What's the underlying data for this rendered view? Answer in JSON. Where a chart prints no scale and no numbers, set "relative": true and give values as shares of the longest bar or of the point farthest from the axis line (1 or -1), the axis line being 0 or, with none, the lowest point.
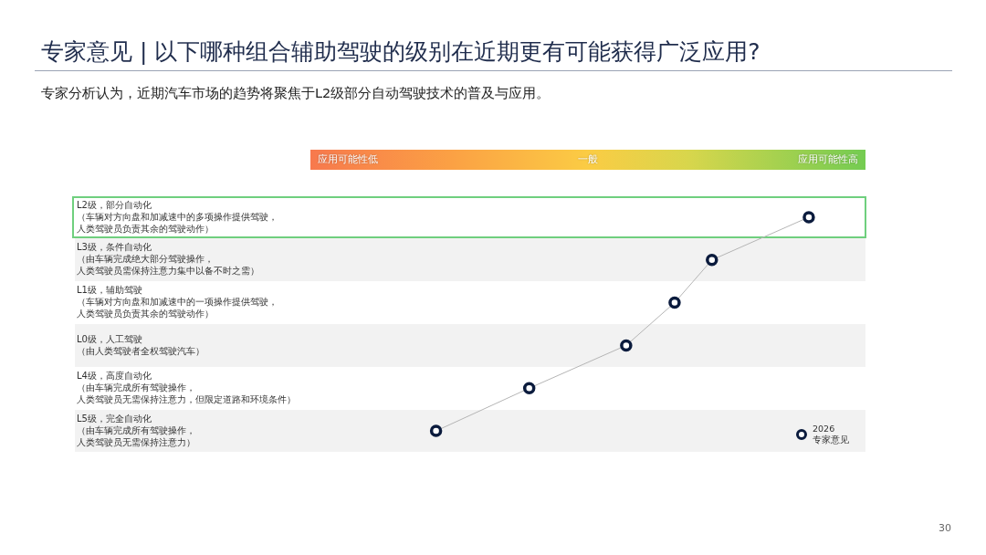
{
  "chart_data": {
    "type": "line",
    "orientation": "horizontal",
    "relative": true,
    "title": "专家意见 | 以下哪种组合辅助驾驶的级别在近期更有可能获得广泛应用?",
    "subtitle": "专家分析认为，近期汽车市场的趋势将聚焦于L2级部分自动驾驶技术的普及与应用。",
    "categories": [
      "L2级，部分自动化（车辆对方向盘和加减速中的多项操作提供驾驶，人类驾驶员负责其余的驾驶动作）",
      "L3级，条件自动化（由车辆完成绝大部分驾驶操作，人类驾驶员需保持注意力集中以备不时之需）",
      "L1级，辅助驾驶（车辆对方向盘和加减速中的一项操作提供驾驶，人类驾驶员负责其余的驾驶动作）",
      "L0级，人工驾驶（由人类驾驶者全权驾驶汽车）",
      "L4级，高度自动化（由车辆完成所有驾驶操作，人类驾驶员无需保持注意力，但限定道路和环境条件）",
      "L5级，完全自动化（由车辆完成所有驾驶操作，人类驾驶员无需保持注意力）"
    ],
    "series": [
      {
        "name": "2026\n专家意见",
        "color": "#0b1b3d",
        "values": [
          1,
          0.74,
          0.64,
          0.51,
          0.25,
          0
        ]
      }
    ],
    "marker": "circle",
    "line_style": "solid",
    "legend": "bottom right",
    "annotations": [
      "应用可能性低",
      "一般",
      "应用可能性高",
      "30"
    ]
  }
}
